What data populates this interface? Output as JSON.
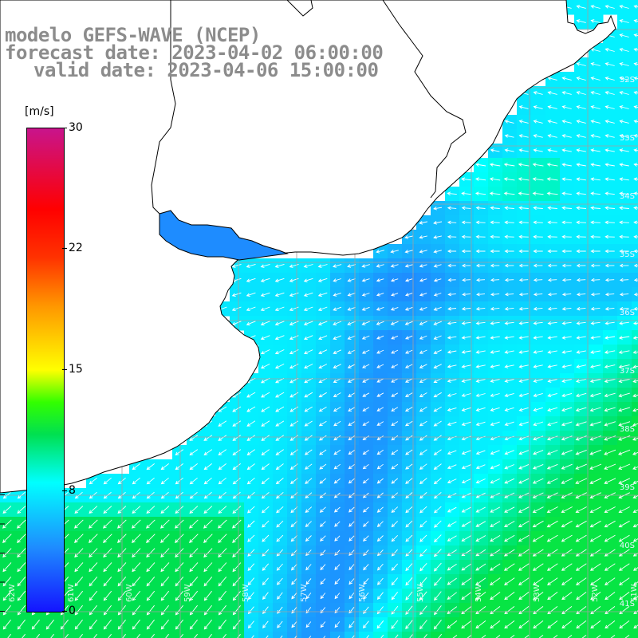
{
  "header": {
    "line1": "modelo GEFS-WAVE (NCEP)",
    "line2": "forecast date: 2023-04-02 06:00:00",
    "line3": "valid date: 2023-04-06 15:00:00"
  },
  "colorbar": {
    "unit": "[m/s]",
    "ticks": [
      "30",
      "22",
      "15",
      "8",
      "0"
    ],
    "tick_values": [
      30,
      22,
      15,
      8,
      0
    ],
    "min": 0,
    "max": 30,
    "stops": [
      {
        "v": 0,
        "c": "#1414ff"
      },
      {
        "v": 4,
        "c": "#1e8cff"
      },
      {
        "v": 8,
        "c": "#00ffff"
      },
      {
        "v": 11,
        "c": "#00e050"
      },
      {
        "v": 13,
        "c": "#32ff00"
      },
      {
        "v": 15,
        "c": "#ffff00"
      },
      {
        "v": 19,
        "c": "#ff9600"
      },
      {
        "v": 22,
        "c": "#ff3200"
      },
      {
        "v": 25,
        "c": "#ff0000"
      },
      {
        "v": 30,
        "c": "#c8148c"
      }
    ]
  },
  "lat_labels": [
    "32S",
    "33S",
    "34S",
    "35S",
    "36S",
    "37S",
    "38S",
    "39S",
    "40S",
    "41S"
  ],
  "lon_labels": [
    "62W",
    "61W",
    "60W",
    "59W",
    "58W",
    "57W",
    "56W",
    "55W",
    "54W",
    "53W",
    "52W",
    "51W"
  ],
  "colors": {
    "land": "#ffffff",
    "coastline": "#000000",
    "grid": "#a0a0a0",
    "arrows": "#ffffff",
    "title_text": "#8c8c8c"
  }
}
